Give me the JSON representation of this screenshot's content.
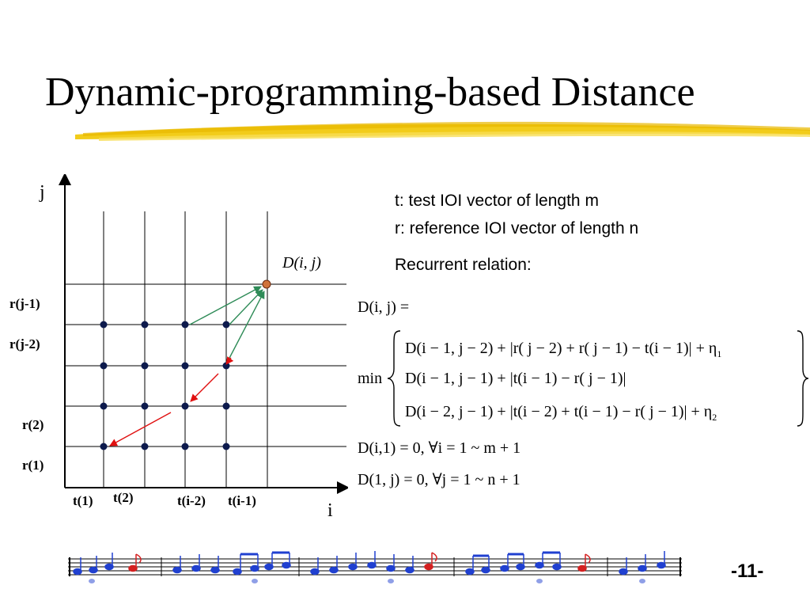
{
  "slide": {
    "title": "Dynamic-programming-based Distance",
    "page_number": "-11-"
  },
  "grid": {
    "j_axis_label": "j",
    "i_axis_label": "i",
    "target_cell_label": "D(i, j)",
    "row_labels": [
      "r(j-1)",
      "r(j-2)",
      "r(2)",
      "r(1)"
    ],
    "col_labels": [
      "t(1)",
      "t(2)",
      "t(i-2)",
      "t(i-1)"
    ]
  },
  "description": {
    "line1": "t: test IOI vector of length m",
    "line2": "r: reference IOI vector of length n",
    "recurrent_label": "Recurrent relation:"
  },
  "formula": {
    "lhs": "D(i, j) =",
    "min_label": "min",
    "case1": "D(i − 1, j − 2) + |r( j − 2) + r( j − 1) − t(i − 1)| + η",
    "case1_sub": "1",
    "case2": "D(i − 1, j − 1) + |t(i − 1) − r( j − 1)|",
    "case3": "D(i − 2, j − 1) + |t(i − 2) + t(i − 1) − r( j − 1)| + η",
    "case3_sub": "2",
    "init1": "D(i,1) = 0, ∀i = 1 ~ m + 1",
    "init2": "D(1, j) = 0, ∀j = 1 ~ n + 1"
  },
  "colors": {
    "brush_yellow": "#f2cc1a",
    "dot": "#0d1a4d",
    "target_dot": "#d0733a",
    "arrow_green": "#2e8b57",
    "arrow_red": "#e01010",
    "note_red": "#d42020",
    "note_blue": "#2040d0"
  }
}
